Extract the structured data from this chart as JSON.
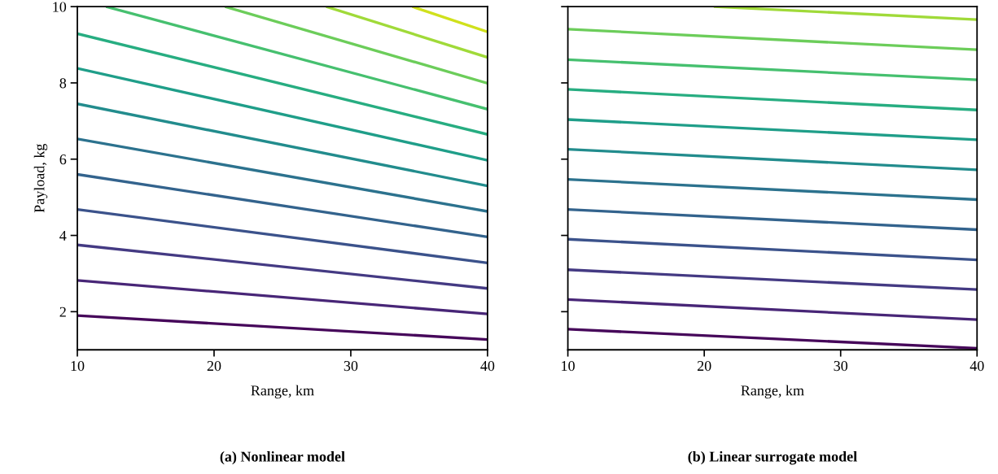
{
  "chart_data": [
    {
      "type": "line",
      "title": "(a) Nonlinear model",
      "xlabel": "Range, km",
      "ylabel": "Payload, kg",
      "xlim": [
        10,
        40
      ],
      "ylim": [
        1,
        10
      ],
      "xticks": [
        10,
        20,
        30,
        40
      ],
      "yticks": [
        2,
        4,
        6,
        8,
        10
      ],
      "grid": false,
      "marker": "none",
      "line_style": "solid",
      "series": [
        {
          "color": "#46075a",
          "x": [
            10,
            40
          ],
          "values": [
            1.9,
            1.27
          ]
        },
        {
          "color": "#482677",
          "x": [
            10,
            40
          ],
          "values": [
            2.82,
            1.94
          ]
        },
        {
          "color": "#443a83",
          "x": [
            10,
            40
          ],
          "values": [
            3.75,
            2.61
          ]
        },
        {
          "color": "#3b528b",
          "x": [
            10,
            40
          ],
          "values": [
            4.68,
            3.28
          ]
        },
        {
          "color": "#33638d",
          "x": [
            10,
            40
          ],
          "values": [
            5.6,
            3.96
          ]
        },
        {
          "color": "#2c728e",
          "x": [
            10,
            40
          ],
          "values": [
            6.53,
            4.63
          ]
        },
        {
          "color": "#228c8d",
          "x": [
            10,
            40
          ],
          "values": [
            7.45,
            5.3
          ]
        },
        {
          "color": "#1f9e89",
          "x": [
            10,
            40
          ],
          "values": [
            8.38,
            5.97
          ]
        },
        {
          "color": "#27ad81",
          "x": [
            10,
            40
          ],
          "values": [
            9.29,
            6.65
          ]
        },
        {
          "color": "#46c06f",
          "x": [
            12.1,
            40
          ],
          "values": [
            10,
            7.31
          ]
        },
        {
          "color": "#6ccd5a",
          "x": [
            20.8,
            40
          ],
          "values": [
            10,
            7.99
          ]
        },
        {
          "color": "#a0da39",
          "x": [
            28.2,
            40
          ],
          "values": [
            10,
            8.67
          ]
        },
        {
          "color": "#d0e11c",
          "x": [
            34.5,
            40
          ],
          "values": [
            10,
            9.34
          ]
        }
      ]
    },
    {
      "type": "line",
      "title": "(b) Linear surrogate model",
      "xlabel": "Range, km",
      "xlim": [
        10,
        40
      ],
      "ylim": [
        1,
        10
      ],
      "xticks": [
        10,
        20,
        30,
        40
      ],
      "yticks": [
        2,
        4,
        6,
        8,
        10
      ],
      "tick_labels": "x",
      "grid": false,
      "marker": "none",
      "line_style": "solid",
      "series": [
        {
          "color": "#46075a",
          "x": [
            10,
            40
          ],
          "values": [
            1.54,
            1.04
          ]
        },
        {
          "color": "#482677",
          "x": [
            10,
            40
          ],
          "values": [
            2.32,
            1.79
          ]
        },
        {
          "color": "#443a83",
          "x": [
            10,
            40
          ],
          "values": [
            3.1,
            2.58
          ]
        },
        {
          "color": "#3b528b",
          "x": [
            10,
            40
          ],
          "values": [
            3.9,
            3.36
          ]
        },
        {
          "color": "#33638d",
          "x": [
            10,
            40
          ],
          "values": [
            4.68,
            4.15
          ]
        },
        {
          "color": "#2c728e",
          "x": [
            10,
            40
          ],
          "values": [
            5.47,
            4.94
          ]
        },
        {
          "color": "#228c8d",
          "x": [
            10,
            40
          ],
          "values": [
            6.26,
            5.72
          ]
        },
        {
          "color": "#1f9e89",
          "x": [
            10,
            40
          ],
          "values": [
            7.04,
            6.51
          ]
        },
        {
          "color": "#27ad81",
          "x": [
            10,
            40
          ],
          "values": [
            7.83,
            7.29
          ]
        },
        {
          "color": "#46c06f",
          "x": [
            10,
            40
          ],
          "values": [
            8.61,
            8.08
          ]
        },
        {
          "color": "#6ccd5a",
          "x": [
            10,
            40
          ],
          "values": [
            9.41,
            8.87
          ]
        },
        {
          "color": "#a0da39",
          "x": [
            20.7,
            40
          ],
          "values": [
            10,
            9.66
          ]
        }
      ]
    }
  ]
}
